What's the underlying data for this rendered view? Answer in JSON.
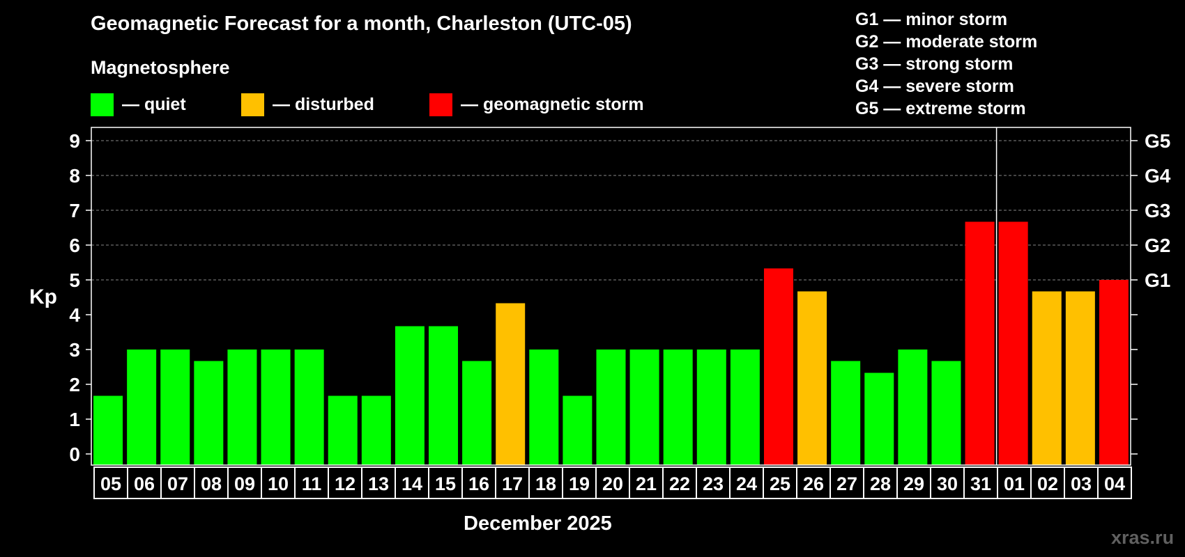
{
  "header": {
    "title": "Geomagnetic Forecast for a month, Charleston (UTC-05)",
    "magnetosphere_title": "Magnetosphere"
  },
  "legend": [
    {
      "label": "— quiet",
      "color": "#00ff00"
    },
    {
      "label": "— disturbed",
      "color": "#ffc000"
    },
    {
      "label": "— geomagnetic storm",
      "color": "#ff0000"
    }
  ],
  "storm_scale": [
    "G1 — minor storm",
    "G2 — moderate storm",
    "G3 — strong storm",
    "G4 — severe storm",
    "G5 — extreme storm"
  ],
  "colors": {
    "quiet": "#00ff00",
    "disturbed": "#ffc000",
    "storm": "#ff0000",
    "axis": "#ffffff",
    "grid": "#888888"
  },
  "watermark": "xras.ru",
  "chart_data": {
    "type": "bar",
    "title": "Geomagnetic Forecast for a month, Charleston (UTC-05)",
    "ylabel": "Kp",
    "xlabel": "December 2025",
    "ylim": [
      0,
      9
    ],
    "yticks": [
      "0",
      "1",
      "2",
      "3",
      "4",
      "5",
      "6",
      "7",
      "8",
      "9"
    ],
    "right_ticks": [
      {
        "value": 5,
        "label": "G1"
      },
      {
        "value": 6,
        "label": "G2"
      },
      {
        "value": 7,
        "label": "G3"
      },
      {
        "value": 8,
        "label": "G4"
      },
      {
        "value": 9,
        "label": "G5"
      }
    ],
    "grid": "dashed horizontal at 5-9",
    "month_divider_after": "31",
    "categories": [
      "05",
      "06",
      "07",
      "08",
      "09",
      "10",
      "11",
      "12",
      "13",
      "14",
      "15",
      "16",
      "17",
      "18",
      "19",
      "20",
      "21",
      "22",
      "23",
      "24",
      "25",
      "26",
      "27",
      "28",
      "29",
      "30",
      "31",
      "01",
      "02",
      "03",
      "04"
    ],
    "values": [
      1.67,
      3.0,
      3.0,
      2.67,
      3.0,
      3.0,
      3.0,
      1.67,
      1.67,
      3.67,
      3.67,
      2.67,
      4.33,
      3.0,
      1.67,
      3.0,
      3.0,
      3.0,
      3.0,
      3.0,
      5.33,
      4.67,
      2.67,
      2.33,
      3.0,
      2.67,
      6.67,
      6.67,
      4.67,
      4.67,
      5.0
    ],
    "status": [
      "quiet",
      "quiet",
      "quiet",
      "quiet",
      "quiet",
      "quiet",
      "quiet",
      "quiet",
      "quiet",
      "quiet",
      "quiet",
      "quiet",
      "disturbed",
      "quiet",
      "quiet",
      "quiet",
      "quiet",
      "quiet",
      "quiet",
      "quiet",
      "storm",
      "disturbed",
      "quiet",
      "quiet",
      "quiet",
      "quiet",
      "storm",
      "storm",
      "disturbed",
      "disturbed",
      "storm"
    ]
  }
}
